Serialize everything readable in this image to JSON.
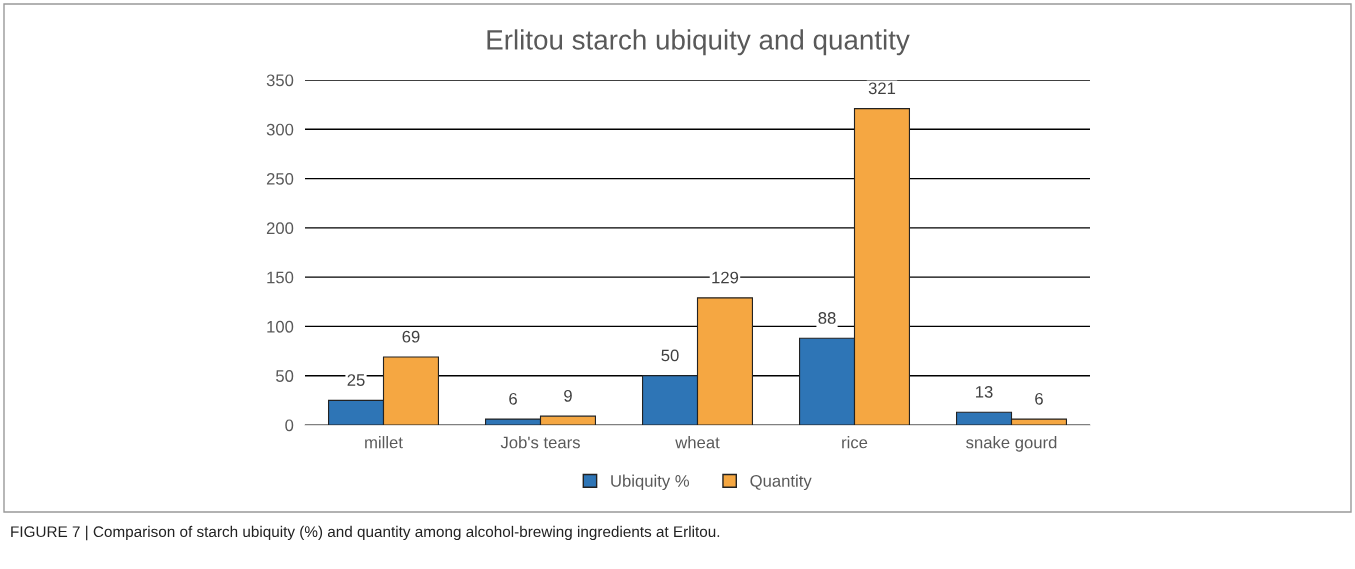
{
  "chart_data": {
    "type": "bar",
    "title": "Erlitou starch ubiquity and quantity",
    "categories": [
      "millet",
      "Job's tears",
      "wheat",
      "rice",
      "snake gourd"
    ],
    "series": [
      {
        "name": "Ubiquity %",
        "color": "#2e75b6",
        "values": [
          25,
          6,
          50,
          88,
          13
        ]
      },
      {
        "name": "Quantity",
        "color": "#f5a742",
        "values": [
          69,
          9,
          129,
          321,
          6
        ]
      }
    ],
    "ylim": [
      0,
      350
    ],
    "yticks": [
      0,
      50,
      100,
      150,
      200,
      250,
      300,
      350
    ],
    "grid": "y",
    "legend": "bottom",
    "data_labels": true,
    "annotations": [
      "FIGURE 7 | Comparison of starch ubiquity (%) and quantity among alcohol-brewing ingredients at Erlitou."
    ]
  }
}
